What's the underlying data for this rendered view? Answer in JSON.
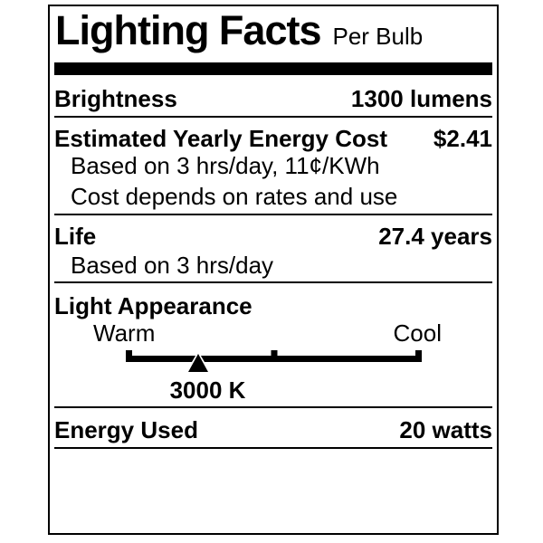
{
  "label": {
    "title": "Lighting Facts",
    "subtitle": "Per Bulb"
  },
  "brightness": {
    "label": "Brightness",
    "value": "1300 lumens"
  },
  "energy_cost": {
    "label": "Estimated Yearly Energy Cost",
    "value": "$2.41",
    "note_hours": "Based on 3 hrs/day, 11¢/KWh",
    "note_rates": "Cost depends on rates and use"
  },
  "life": {
    "label": "Life",
    "value": "27.4 years",
    "note_hours": "Based on 3 hrs/day"
  },
  "light_appearance": {
    "label": "Light Appearance",
    "scale_left": "Warm",
    "scale_right": "Cool",
    "marker_value": "3000 K",
    "marker_position_pct": 24.5
  },
  "energy_used": {
    "label": "Energy Used",
    "value": "20 watts"
  },
  "colors": {
    "ink": "#000000",
    "paper": "#ffffff"
  }
}
